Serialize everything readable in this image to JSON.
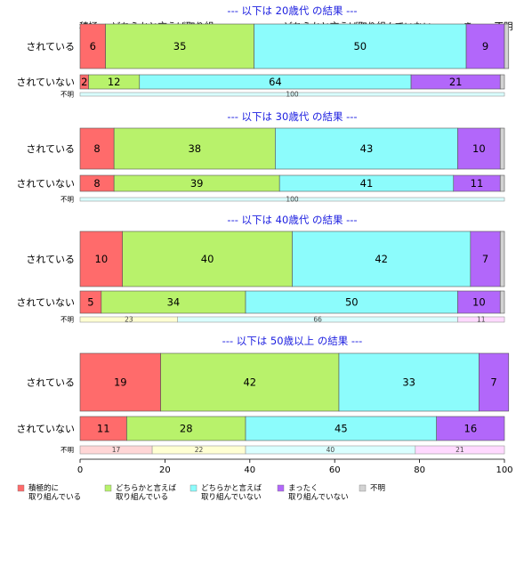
{
  "chart_data": {
    "type": "bar",
    "stacked": true,
    "orientation": "horizontal",
    "xlim": [
      0,
      100
    ],
    "x_ticks": [
      0,
      20,
      40,
      60,
      80,
      100
    ],
    "top_category_labels": [
      "積極..",
      "どちらかと言えば取り組..",
      "どちらかと言えば取り組んでいない",
      "まっ..",
      "不明"
    ],
    "series": [
      {
        "name": "積極的に\n取り組んでいる",
        "color": "#FF6B6B",
        "light": "#FFD6D6"
      },
      {
        "name": "どちらかと言えば\n取り組んでいる",
        "color": "#B8F26B",
        "light": "#FFFFD2"
      },
      {
        "name": "どちらかと言えば\n取り組んでいない",
        "color": "#8CFCFC",
        "light": "#D9FFFF"
      },
      {
        "name": "まったく\n取り組んでいない",
        "color": "#B267FA",
        "light": "#FFD9FF"
      },
      {
        "name": "不明",
        "color": "#D3D3D3",
        "light": "#EEEEEE"
      }
    ],
    "groups": [
      {
        "title": "--- 以下は 20歳代 の結果 ---",
        "rows": [
          {
            "label": "されている",
            "values": [
              6,
              35,
              50,
              9,
              1
            ],
            "shown": [
              "6",
              "35",
              "50",
              "9",
              ""
            ]
          },
          {
            "label": "されていない",
            "values": [
              2,
              12,
              64,
              21,
              1
            ],
            "shown": [
              "2",
              "12",
              "64",
              "21",
              ""
            ]
          },
          {
            "label": "不明",
            "values": [
              0,
              0,
              100,
              0,
              0
            ],
            "shown": [
              "",
              "",
              "100",
              "",
              ""
            ]
          }
        ]
      },
      {
        "title": "--- 以下は 30歳代 の結果 ---",
        "rows": [
          {
            "label": "されている",
            "values": [
              8,
              38,
              43,
              10,
              1
            ],
            "shown": [
              "8",
              "38",
              "43",
              "10",
              ""
            ]
          },
          {
            "label": "されていない",
            "values": [
              8,
              39,
              41,
              11,
              1
            ],
            "shown": [
              "8",
              "39",
              "41",
              "11",
              ""
            ]
          },
          {
            "label": "不明",
            "values": [
              0,
              0,
              100,
              0,
              0
            ],
            "shown": [
              "",
              "",
              "100",
              "",
              ""
            ]
          }
        ]
      },
      {
        "title": "--- 以下は 40歳代 の結果 ---",
        "rows": [
          {
            "label": "されている",
            "values": [
              10,
              40,
              42,
              7,
              1
            ],
            "shown": [
              "10",
              "40",
              "42",
              "7",
              ""
            ]
          },
          {
            "label": "されていない",
            "values": [
              5,
              34,
              50,
              10,
              1
            ],
            "shown": [
              "5",
              "34",
              "50",
              "10",
              ""
            ]
          },
          {
            "label": "不明",
            "values": [
              0,
              23,
              66,
              11,
              0
            ],
            "shown": [
              "",
              "23",
              "66",
              "11",
              ""
            ]
          }
        ]
      },
      {
        "title": "--- 以下は 50歳以上 の結果 ---",
        "rows": [
          {
            "label": "されている",
            "values": [
              19,
              42,
              33,
              7,
              0
            ],
            "shown": [
              "19",
              "42",
              "33",
              "7",
              ""
            ]
          },
          {
            "label": "されていない",
            "values": [
              11,
              28,
              45,
              16,
              0
            ],
            "shown": [
              "11",
              "28",
              "45",
              "16",
              ""
            ]
          },
          {
            "label": "不明",
            "values": [
              17,
              22,
              40,
              21,
              0
            ],
            "shown": [
              "17",
              "22",
              "40",
              "21",
              ""
            ]
          }
        ]
      }
    ]
  }
}
